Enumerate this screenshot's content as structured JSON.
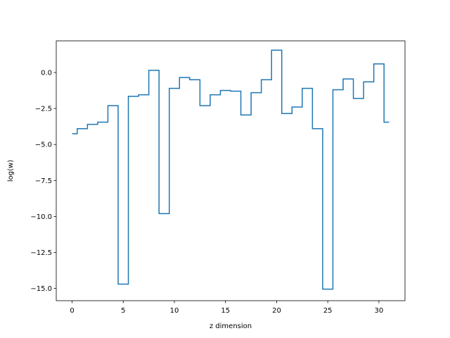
{
  "chart_data": {
    "type": "line",
    "drawstyle": "steps-mid",
    "title": "",
    "xlabel": "z dimension",
    "ylabel": "log(w)",
    "xlim": [
      -1.55,
      32.55
    ],
    "ylim": [
      -15.85,
      2.2
    ],
    "xticks": [
      0,
      5,
      10,
      15,
      20,
      25,
      30
    ],
    "xtick_labels": [
      "0",
      "5",
      "10",
      "15",
      "20",
      "25",
      "30"
    ],
    "yticks": [
      0.0,
      -2.5,
      -5.0,
      -7.5,
      -10.0,
      -12.5,
      -15.0
    ],
    "ytick_labels": [
      "0.0",
      "−2.5",
      "−5.0",
      "−7.5",
      "−10.0",
      "−12.5",
      "−15.0"
    ],
    "grid": false,
    "legend": "none",
    "line_color": "#1f77b4",
    "series": [
      {
        "x": [
          0,
          1,
          2,
          3,
          4,
          5,
          6,
          7,
          8,
          9,
          10,
          11,
          12,
          13,
          14,
          15,
          16,
          17,
          18,
          19,
          20,
          21,
          22,
          23,
          24,
          25,
          26,
          27,
          28,
          29,
          30,
          31
        ],
        "values": [
          -4.25,
          -3.9,
          -3.6,
          -3.45,
          -2.3,
          -14.7,
          -1.65,
          -1.55,
          0.15,
          -9.8,
          -1.1,
          -0.35,
          -0.5,
          -2.3,
          -1.55,
          -1.25,
          -1.3,
          -2.95,
          -1.4,
          -0.5,
          1.55,
          -2.85,
          -2.4,
          -1.1,
          -3.9,
          -15.05,
          -1.2,
          -0.45,
          -1.8,
          -0.65,
          0.6,
          -3.45
        ]
      }
    ]
  }
}
